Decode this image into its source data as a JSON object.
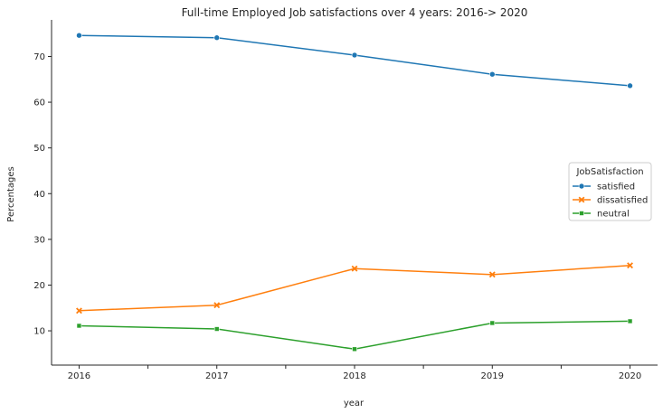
{
  "chart_data": {
    "type": "line",
    "title": "Full-time Employed Job satisfactions over 4 years: 2016-> 2020",
    "xlabel": "year",
    "ylabel": "Percentages",
    "x": [
      "2016",
      "2017",
      "2018",
      "2019",
      "2020"
    ],
    "xlim": [
      2015.8,
      2020.2
    ],
    "ylim": [
      2.5,
      78
    ],
    "yticks": [
      10,
      20,
      30,
      40,
      50,
      60,
      70
    ],
    "grid": false,
    "legend_title": "JobSatisfaction",
    "legend_position": "right",
    "series": [
      {
        "name": "satisfied",
        "values": [
          74.6,
          74.1,
          70.3,
          66.1,
          63.6
        ],
        "color": "#1f77b4",
        "marker": "circle"
      },
      {
        "name": "dissatisfied",
        "values": [
          14.4,
          15.6,
          23.6,
          22.3,
          24.3
        ],
        "color": "#ff7f0e",
        "marker": "x"
      },
      {
        "name": "neutral",
        "values": [
          11.1,
          10.4,
          6.0,
          11.7,
          12.1
        ],
        "color": "#2ca02c",
        "marker": "square"
      }
    ]
  }
}
